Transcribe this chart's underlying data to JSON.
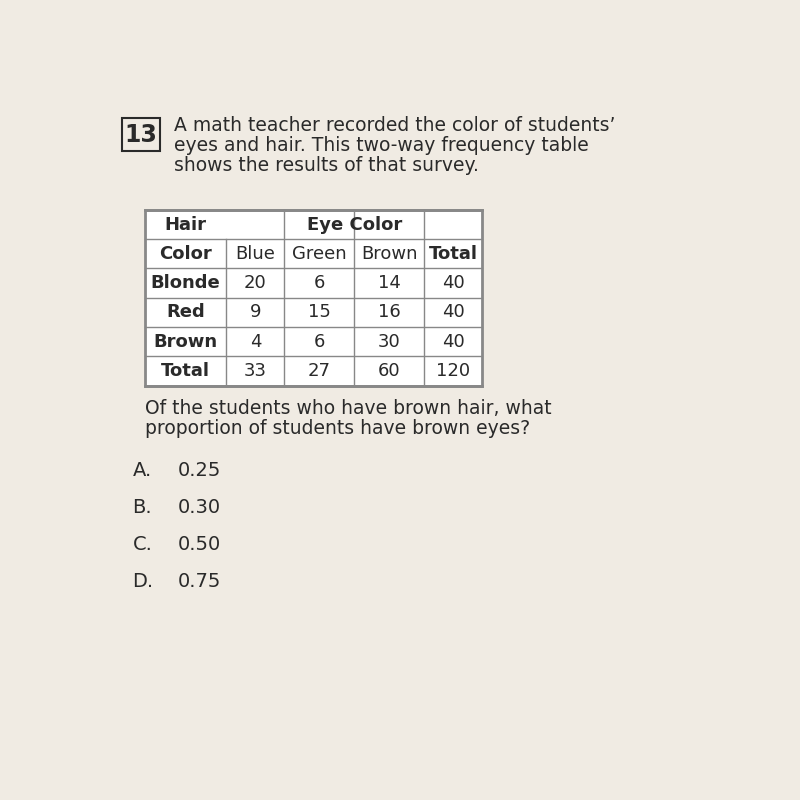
{
  "question_number": "13",
  "question_text_line1": "A math teacher recorded the color of students’",
  "question_text_line2": "eyes and hair. This two-way frequency table",
  "question_text_line3": "shows the results of that survey.",
  "col_headers_row1": [
    "Hair",
    "Eye Color"
  ],
  "col_headers_row2": [
    "Color",
    "Blue",
    "Green",
    "Brown",
    "Total"
  ],
  "rows": [
    [
      "Blonde",
      "20",
      "6",
      "14",
      "40"
    ],
    [
      "Red",
      "9",
      "15",
      "16",
      "40"
    ],
    [
      "Brown",
      "4",
      "6",
      "30",
      "40"
    ],
    [
      "Total",
      "33",
      "27",
      "60",
      "120"
    ]
  ],
  "sub_question_line1": "Of the students who have brown hair, what",
  "sub_question_line2": "proportion of students have brown eyes?",
  "choices": [
    {
      "label": "A.",
      "value": "0.25"
    },
    {
      "label": "B.",
      "value": "0.30"
    },
    {
      "label": "C.",
      "value": "0.50"
    },
    {
      "label": "D.",
      "value": "0.75"
    }
  ],
  "background_color": "#f0ebe3",
  "table_bg": "#ffffff",
  "text_color": "#2a2a2a",
  "border_color": "#888888",
  "font_size_question": 13.5,
  "font_size_table": 13,
  "font_size_choices": 14
}
